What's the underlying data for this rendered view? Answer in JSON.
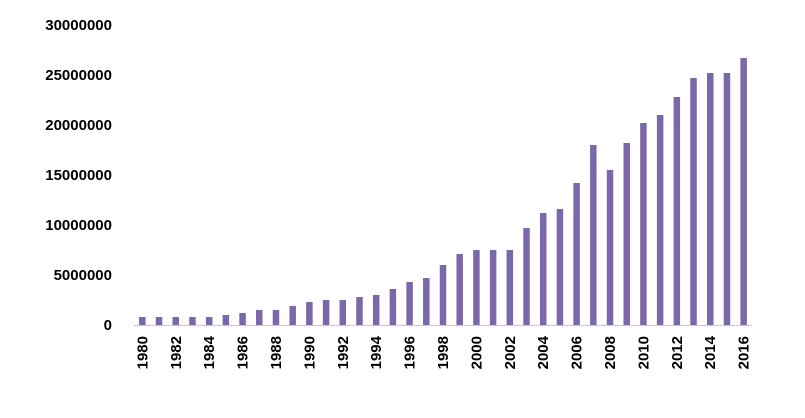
{
  "chart_data": {
    "type": "bar",
    "title": "",
    "xlabel": "",
    "ylabel": "",
    "ylim": [
      0,
      30000000
    ],
    "yticks": [
      0,
      5000000,
      10000000,
      15000000,
      20000000,
      25000000,
      30000000
    ],
    "ytick_labels": [
      "0",
      "5000000",
      "10000000",
      "15000000",
      "20000000",
      "25000000",
      "30000000"
    ],
    "categories": [
      "1980",
      "1981",
      "1982",
      "1983",
      "1984",
      "1985",
      "1986",
      "1987",
      "1988",
      "1989",
      "1990",
      "1991",
      "1992",
      "1993",
      "1994",
      "1995",
      "1996",
      "1997",
      "1998",
      "1999",
      "2000",
      "2001",
      "2002",
      "2003",
      "2004",
      "2005",
      "2006",
      "2007",
      "2008",
      "2009",
      "2010",
      "2011",
      "2012",
      "2013",
      "2014",
      "2015",
      "2016"
    ],
    "xtick_labels": [
      "1980",
      "1982",
      "1984",
      "1986",
      "1988",
      "1990",
      "1992",
      "1994",
      "1996",
      "1998",
      "2000",
      "2002",
      "2004",
      "2006",
      "2008",
      "2010",
      "2012",
      "2014",
      "2016"
    ],
    "values": [
      800000,
      800000,
      800000,
      800000,
      800000,
      1000000,
      1200000,
      1500000,
      1500000,
      1900000,
      2300000,
      2500000,
      2500000,
      2800000,
      3000000,
      3600000,
      4300000,
      4700000,
      6000000,
      7100000,
      7500000,
      7500000,
      7500000,
      9700000,
      11200000,
      11600000,
      14200000,
      18000000,
      15500000,
      18200000,
      20200000,
      21000000,
      22800000,
      24700000,
      25200000,
      25200000,
      26700000
    ],
    "bar_color": "#7b68ab",
    "grid": false,
    "legend": "none"
  }
}
